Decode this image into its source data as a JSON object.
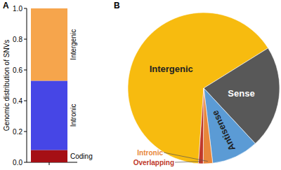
{
  "chart_data": [
    {
      "type": "bar",
      "title": "A",
      "stacked": true,
      "ylabel": "Genomic distribution of SNVs",
      "categories": [
        null
      ],
      "series": [
        {
          "name": "Coding",
          "color": "#a50f15",
          "values": [
            0.08
          ]
        },
        {
          "name": "Intronic",
          "color": "#4646e6",
          "values": [
            0.45
          ]
        },
        {
          "name": "Intergenic",
          "color": "#f6a54c",
          "values": [
            0.47
          ]
        }
      ],
      "ylim": [
        0,
        1
      ],
      "yticks": [
        {
          "value": 0,
          "label": "0.0"
        },
        {
          "value": 0.2,
          "label": "0.2"
        },
        {
          "value": 0.4,
          "label": "0.4"
        },
        {
          "value": 0.6,
          "label": "0.6"
        },
        {
          "value": 0.8,
          "label": "0.8"
        },
        {
          "value": 1,
          "label": "1.0"
        }
      ]
    },
    {
      "type": "pie",
      "title": "B",
      "categories": [
        "Intergenic",
        "Sense",
        "Antisense",
        "Intronic",
        "Overlapping"
      ],
      "values": [
        65,
        22,
        10,
        2,
        1
      ],
      "colors": [
        "#f7bb0f",
        "#585858",
        "#5b9bd5",
        "#e8873a",
        "#c0392b"
      ]
    }
  ]
}
